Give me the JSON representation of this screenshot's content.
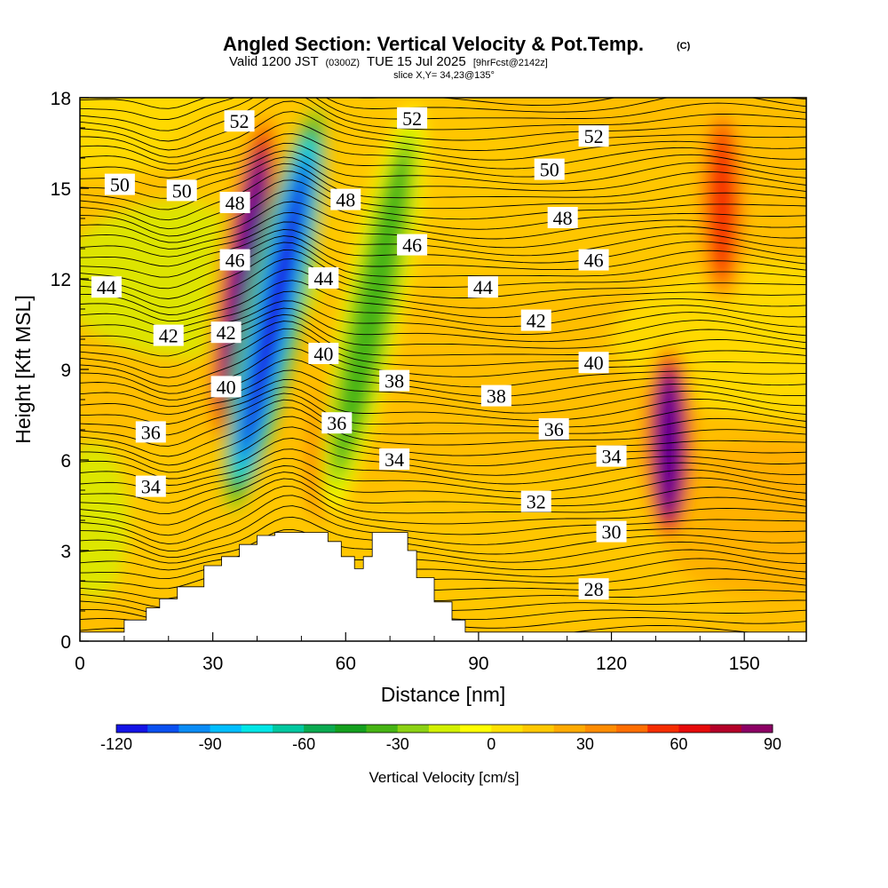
{
  "title": {
    "main": "Angled Section: Vertical Velocity & Pot.Temp.",
    "copyright_mark": "(C)",
    "valid_prefix": "Valid 1200 JST",
    "valid_utc": "(0300Z)",
    "valid_date": "TUE 15 Jul 2025",
    "forecast": "[9hrFcst@2142z]",
    "slice": "slice X,Y= 34,23@135°"
  },
  "chart_data": {
    "type": "heatmap",
    "xlabel": "Distance [nm]",
    "ylabel": "Height [Kft MSL]",
    "xlim": [
      0,
      164
    ],
    "ylim": [
      0,
      18
    ],
    "x_ticks": [
      "0",
      "30",
      "60",
      "90",
      "120",
      "150"
    ],
    "y_ticks": [
      "0",
      "3",
      "6",
      "9",
      "12",
      "15",
      "18"
    ],
    "x_tick_values": [
      0,
      30,
      60,
      90,
      120,
      150
    ],
    "y_tick_values": [
      0,
      3,
      6,
      9,
      12,
      15,
      18
    ],
    "colorbar": {
      "title": "Vertical Velocity [cm/s]",
      "range": [
        -120,
        90
      ],
      "step": 10,
      "tick_labels": [
        "-120",
        "-90",
        "-60",
        "-30",
        "0",
        "30",
        "60",
        "90"
      ],
      "tick_values": [
        -120,
        -90,
        -60,
        -30,
        0,
        30,
        60,
        90
      ],
      "colors": [
        "#1414e6",
        "#0a50f0",
        "#0a8cf5",
        "#00beff",
        "#00e6e6",
        "#00c8a0",
        "#0aaa50",
        "#14a01e",
        "#46b414",
        "#8cd214",
        "#d2f000",
        "#ffff00",
        "#ffe100",
        "#ffc800",
        "#ffaa00",
        "#ff8c00",
        "#ff6e00",
        "#f52d00",
        "#e60a0a",
        "#b40028",
        "#8c0064",
        "#5a0096"
      ]
    },
    "velocity_features": [
      {
        "kind": "updraft",
        "x": 37,
        "y_range": [
          6,
          18
        ],
        "peak_cm_s": 90
      },
      {
        "kind": "downdraft",
        "x": 44,
        "y_range": [
          4,
          18
        ],
        "peak_cm_s": -120
      },
      {
        "kind": "updraft",
        "x": 57,
        "y_range": [
          3.6,
          10
        ],
        "peak_cm_s": 50
      },
      {
        "kind": "downdraft",
        "x": 66,
        "y_range": [
          4,
          18
        ],
        "peak_cm_s": -40
      },
      {
        "kind": "updraft",
        "x": 133,
        "y_range": [
          3,
          10
        ],
        "peak_cm_s": 90
      },
      {
        "kind": "updraft",
        "x": 145,
        "y_range": [
          11,
          18
        ],
        "peak_cm_s": 50
      }
    ],
    "terrain_kft": {
      "x": [
        0,
        10,
        15,
        18,
        22,
        28,
        32,
        36,
        40,
        44,
        52,
        56,
        59,
        62,
        64,
        66,
        72,
        74,
        76,
        80,
        84,
        87,
        164
      ],
      "height": [
        0.3,
        0.7,
        1.1,
        1.4,
        1.8,
        2.5,
        2.8,
        3.2,
        3.5,
        3.6,
        3.6,
        3.3,
        2.8,
        2.4,
        2.8,
        3.6,
        3.6,
        3.0,
        2.1,
        1.3,
        0.7,
        0.3,
        0.3
      ]
    },
    "potential_temperature_labels": [
      {
        "text": "52",
        "x": 36,
        "y": 17.2
      },
      {
        "text": "52",
        "x": 75,
        "y": 17.3
      },
      {
        "text": "52",
        "x": 116,
        "y": 16.7
      },
      {
        "text": "50",
        "x": 9,
        "y": 15.1
      },
      {
        "text": "50",
        "x": 23,
        "y": 14.9
      },
      {
        "text": "50",
        "x": 106,
        "y": 15.6
      },
      {
        "text": "48",
        "x": 35,
        "y": 14.5
      },
      {
        "text": "48",
        "x": 60,
        "y": 14.6
      },
      {
        "text": "48",
        "x": 109,
        "y": 14.0
      },
      {
        "text": "46",
        "x": 35,
        "y": 12.6
      },
      {
        "text": "46",
        "x": 75,
        "y": 13.1
      },
      {
        "text": "46",
        "x": 116,
        "y": 12.6
      },
      {
        "text": "44",
        "x": 6,
        "y": 11.7
      },
      {
        "text": "44",
        "x": 55,
        "y": 12.0
      },
      {
        "text": "44",
        "x": 91,
        "y": 11.7
      },
      {
        "text": "42",
        "x": 20,
        "y": 10.1
      },
      {
        "text": "42",
        "x": 33,
        "y": 10.2
      },
      {
        "text": "42",
        "x": 103,
        "y": 10.6
      },
      {
        "text": "40",
        "x": 33,
        "y": 8.4
      },
      {
        "text": "40",
        "x": 55,
        "y": 9.5
      },
      {
        "text": "40",
        "x": 116,
        "y": 9.2
      },
      {
        "text": "38",
        "x": 71,
        "y": 8.6
      },
      {
        "text": "38",
        "x": 94,
        "y": 8.1
      },
      {
        "text": "36",
        "x": 16,
        "y": 6.9
      },
      {
        "text": "36",
        "x": 58,
        "y": 7.2
      },
      {
        "text": "36",
        "x": 107,
        "y": 7.0
      },
      {
        "text": "34",
        "x": 16,
        "y": 5.1
      },
      {
        "text": "34",
        "x": 71,
        "y": 6.0
      },
      {
        "text": "34",
        "x": 120,
        "y": 6.1
      },
      {
        "text": "32",
        "x": 103,
        "y": 4.6
      },
      {
        "text": "30",
        "x": 120,
        "y": 3.6
      },
      {
        "text": "28",
        "x": 116,
        "y": 1.7
      }
    ]
  }
}
